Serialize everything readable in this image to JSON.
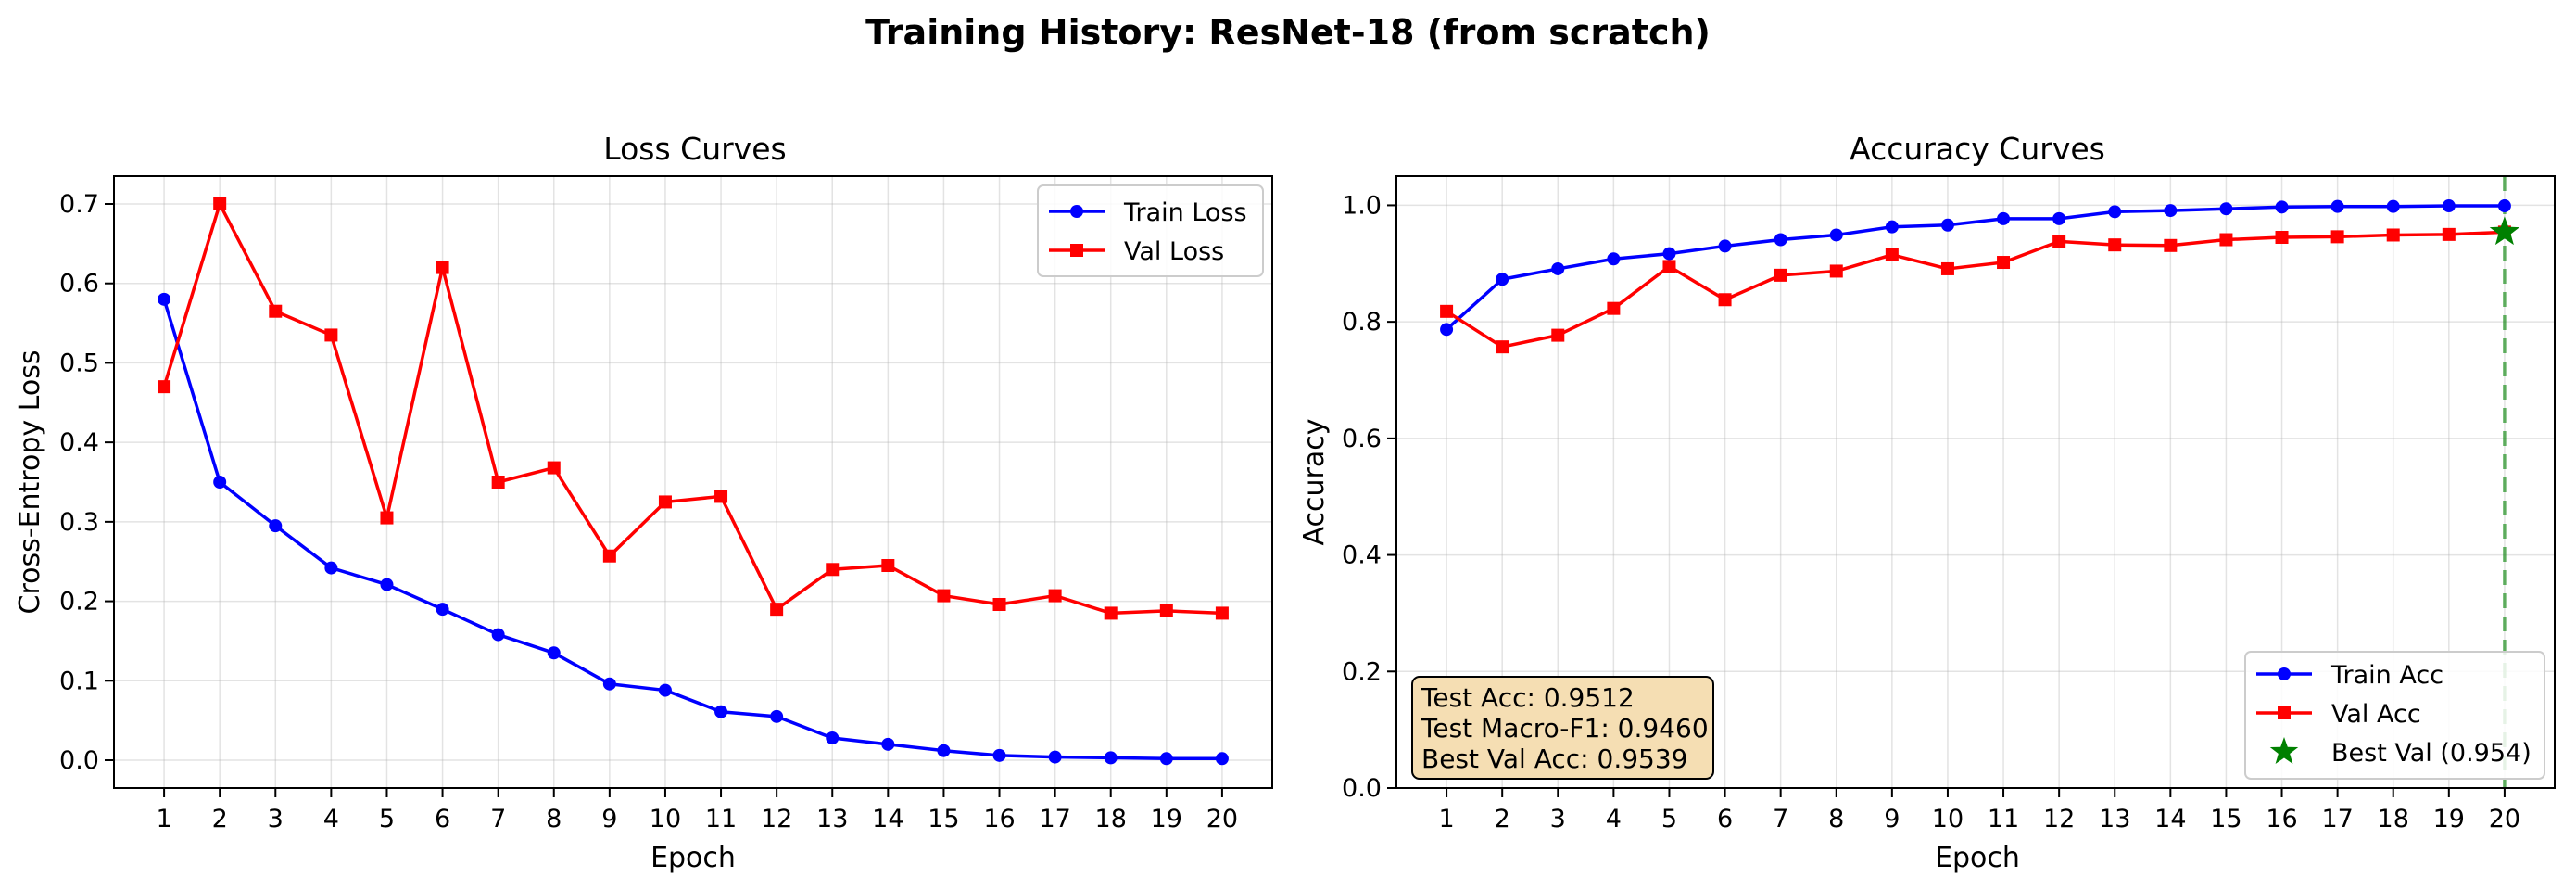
{
  "figure": {
    "title": "Training History: ResNet-18 (from scratch)"
  },
  "chart_data": [
    {
      "type": "line",
      "title": "Loss Curves",
      "xlabel": "Epoch",
      "ylabel": "Cross-Entropy Loss",
      "x": [
        1,
        2,
        3,
        4,
        5,
        6,
        7,
        8,
        9,
        10,
        11,
        12,
        13,
        14,
        15,
        16,
        17,
        18,
        19,
        20
      ],
      "xlim": [
        0.1,
        20.9
      ],
      "ylim": [
        -0.035,
        0.735
      ],
      "yticks": [
        0.0,
        0.1,
        0.2,
        0.3,
        0.4,
        0.5,
        0.6,
        0.7
      ],
      "ytick_labels": [
        "0.0",
        "0.1",
        "0.2",
        "0.3",
        "0.4",
        "0.5",
        "0.6",
        "0.7"
      ],
      "grid": true,
      "legend_position": "top-right",
      "series": [
        {
          "name": "Train Loss",
          "color": "#0000ff",
          "marker": "circle",
          "values": [
            0.58,
            0.35,
            0.295,
            0.242,
            0.221,
            0.19,
            0.158,
            0.135,
            0.096,
            0.088,
            0.061,
            0.055,
            0.028,
            0.02,
            0.012,
            0.006,
            0.004,
            0.003,
            0.002,
            0.002
          ]
        },
        {
          "name": "Val Loss",
          "color": "#ff0000",
          "marker": "square",
          "values": [
            0.47,
            0.7,
            0.565,
            0.535,
            0.305,
            0.62,
            0.35,
            0.368,
            0.257,
            0.325,
            0.332,
            0.19,
            0.24,
            0.245,
            0.207,
            0.196,
            0.207,
            0.185,
            0.188,
            0.185
          ]
        }
      ]
    },
    {
      "type": "line",
      "title": "Accuracy Curves",
      "xlabel": "Epoch",
      "ylabel": "Accuracy",
      "x": [
        1,
        2,
        3,
        4,
        5,
        6,
        7,
        8,
        9,
        10,
        11,
        12,
        13,
        14,
        15,
        16,
        17,
        18,
        19,
        20
      ],
      "xlim": [
        0.1,
        20.9
      ],
      "ylim": [
        0.0,
        1.05
      ],
      "yticks": [
        0.0,
        0.2,
        0.4,
        0.6,
        0.8,
        1.0
      ],
      "ytick_labels": [
        "0.0",
        "0.2",
        "0.4",
        "0.6",
        "0.8",
        "1.0"
      ],
      "grid": true,
      "legend_position": "bottom-right",
      "series": [
        {
          "name": "Train Acc",
          "color": "#0000ff",
          "marker": "circle",
          "values": [
            0.787,
            0.873,
            0.891,
            0.908,
            0.917,
            0.93,
            0.941,
            0.949,
            0.963,
            0.966,
            0.977,
            0.977,
            0.989,
            0.991,
            0.994,
            0.997,
            0.998,
            0.998,
            0.999,
            0.999
          ]
        },
        {
          "name": "Val Acc",
          "color": "#ff0000",
          "marker": "square",
          "values": [
            0.818,
            0.757,
            0.777,
            0.823,
            0.895,
            0.838,
            0.88,
            0.887,
            0.915,
            0.891,
            0.902,
            0.938,
            0.932,
            0.931,
            0.941,
            0.945,
            0.946,
            0.949,
            0.95,
            0.954
          ]
        }
      ],
      "best_point": {
        "name": "Best Val (0.954)",
        "x": 20,
        "y": 0.954,
        "color": "#008000",
        "marker": "star"
      },
      "vline": {
        "x": 20,
        "color": "#008000",
        "style": "dashed"
      },
      "annotation": {
        "lines": [
          "Test Acc: 0.9512",
          "Test Macro-F1: 0.9460",
          "Best Val Acc: 0.9539"
        ],
        "background": "#f5deb3",
        "position": "bottom-left"
      }
    }
  ]
}
